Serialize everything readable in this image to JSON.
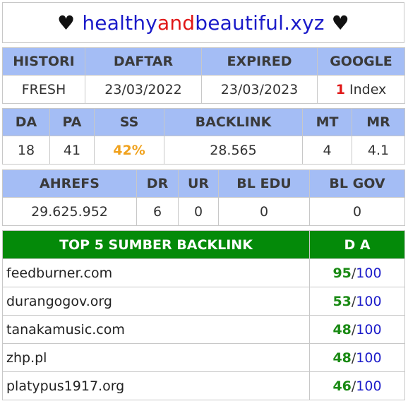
{
  "header": {
    "heart": "♥",
    "part1": "healthy",
    "part2": "and",
    "part3": "beautiful.xyz"
  },
  "table1": {
    "headers": [
      "HISTORI",
      "DAFTAR",
      "EXPIRED",
      "GOOGLE"
    ],
    "values": [
      "FRESH",
      "23/03/2022",
      "23/03/2023"
    ],
    "google_count": "1",
    "google_label": "Index"
  },
  "table2": {
    "headers": [
      "DA",
      "PA",
      "SS",
      "BACKLINK",
      "MT",
      "MR"
    ],
    "values": [
      "18",
      "41",
      "42%",
      "28.565",
      "4",
      "4.1"
    ]
  },
  "table3": {
    "headers": [
      "AHREFS",
      "DR",
      "UR",
      "BL EDU",
      "BL GOV"
    ],
    "values": [
      "29.625.952",
      "6",
      "0",
      "0",
      "0"
    ]
  },
  "sources": {
    "header_left": "TOP 5 SUMBER BACKLINK",
    "header_right": "D A",
    "max": "100",
    "rows": [
      {
        "domain": "feedburner.com",
        "da": "95"
      },
      {
        "domain": "durangogov.org",
        "da": "53"
      },
      {
        "domain": "tanakamusic.com",
        "da": "48"
      },
      {
        "domain": "zhp.pl",
        "da": "48"
      },
      {
        "domain": "platypus1917.org",
        "da": "46"
      }
    ]
  },
  "colors": {
    "header_blue": "#a4bdf5",
    "header_green": "#048a09",
    "brand_blue": "#1b1bc9",
    "brand_red": "#e01717",
    "ss_orange": "#f0a21e",
    "score_green": "#1a8a14"
  }
}
